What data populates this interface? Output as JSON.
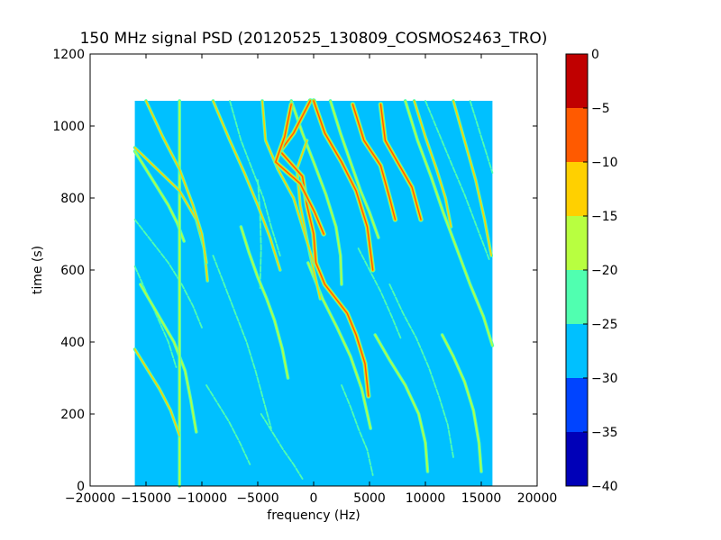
{
  "chart_data": {
    "type": "heatmap",
    "title": "150 MHz signal PSD (20120525_130809_COSMOS2463_TRO)",
    "xlabel": "frequency (Hz)",
    "ylabel": "time (s)",
    "xlim": [
      -20000,
      20000
    ],
    "ylim": [
      0,
      1200
    ],
    "xticks": [
      -20000,
      -15000,
      -10000,
      -5000,
      0,
      5000,
      10000,
      15000,
      20000
    ],
    "xtick_labels": [
      "−20000",
      "−15000",
      "−10000",
      "−5000",
      "0",
      "5000",
      "10000",
      "15000",
      "20000"
    ],
    "yticks": [
      0,
      200,
      400,
      600,
      800,
      1000,
      1200
    ],
    "ytick_labels": [
      "0",
      "200",
      "400",
      "600",
      "800",
      "1000",
      "1200"
    ],
    "data_extent": {
      "x": [
        -16000,
        16000
      ],
      "y": [
        0,
        1070
      ]
    },
    "background_level": -27.5,
    "colorbar": {
      "levels": [
        -40,
        -35,
        -30,
        -25,
        -20,
        -15,
        -10,
        -5,
        0
      ],
      "tick_labels": [
        "−40",
        "−35",
        "−30",
        "−25",
        "−20",
        "−15",
        "−10",
        "−5",
        "0"
      ],
      "colors": [
        "#0000b8",
        "#0044ff",
        "#00c0ff",
        "#50ffb0",
        "#b8ff40",
        "#ffd000",
        "#ff5a00",
        "#c00000"
      ]
    },
    "traces": [
      {
        "level": -7.5,
        "points": [
          [
            -300,
            1070
          ],
          [
            -1800,
            980
          ],
          [
            -3000,
            930
          ],
          [
            -1000,
            860
          ],
          [
            -600,
            780
          ],
          [
            0,
            700
          ],
          [
            200,
            620
          ],
          [
            1000,
            560
          ],
          [
            2000,
            520
          ],
          [
            3000,
            480
          ],
          [
            3800,
            420
          ],
          [
            4600,
            340
          ],
          [
            4900,
            250
          ]
        ]
      },
      {
        "level": -7.5,
        "points": [
          [
            0,
            1070
          ],
          [
            1000,
            980
          ],
          [
            2500,
            900
          ],
          [
            3800,
            820
          ],
          [
            4800,
            720
          ],
          [
            5300,
            600
          ]
        ]
      },
      {
        "level": -7.5,
        "points": [
          [
            3500,
            1060
          ],
          [
            4500,
            960
          ],
          [
            6000,
            890
          ],
          [
            6800,
            800
          ],
          [
            7300,
            740
          ]
        ]
      },
      {
        "level": -7.5,
        "points": [
          [
            6000,
            1060
          ],
          [
            6400,
            960
          ],
          [
            7500,
            900
          ],
          [
            8800,
            830
          ],
          [
            9600,
            740
          ]
        ]
      },
      {
        "level": -7.5,
        "points": [
          [
            -2000,
            1060
          ],
          [
            -2600,
            970
          ],
          [
            -3400,
            900
          ],
          [
            -1200,
            840
          ],
          [
            100,
            760
          ],
          [
            900,
            700
          ]
        ]
      },
      {
        "level": -12.5,
        "points": [
          [
            -600,
            960
          ],
          [
            -1500,
            880
          ],
          [
            -1200,
            780
          ],
          [
            -300,
            640
          ],
          [
            300,
            560
          ],
          [
            600,
            520
          ]
        ]
      },
      {
        "level": -12.5,
        "points": [
          [
            -4600,
            1070
          ],
          [
            -4300,
            960
          ],
          [
            -3200,
            880
          ],
          [
            -1800,
            800
          ],
          [
            -600,
            680
          ],
          [
            0,
            620
          ]
        ]
      },
      {
        "level": -12.5,
        "points": [
          [
            -16000,
            940
          ],
          [
            -14000,
            880
          ],
          [
            -12000,
            820
          ],
          [
            -10500,
            740
          ],
          [
            -9800,
            660
          ],
          [
            -9500,
            570
          ]
        ]
      },
      {
        "level": -12.5,
        "points": [
          [
            -15000,
            1070
          ],
          [
            -13500,
            970
          ],
          [
            -12000,
            880
          ],
          [
            -10800,
            780
          ],
          [
            -10000,
            700
          ],
          [
            -9600,
            620
          ]
        ]
      },
      {
        "level": -12.5,
        "points": [
          [
            -9000,
            1070
          ],
          [
            -7500,
            960
          ],
          [
            -6200,
            870
          ],
          [
            -5000,
            780
          ],
          [
            -3900,
            690
          ],
          [
            -3000,
            600
          ]
        ]
      },
      {
        "level": -12.5,
        "points": [
          [
            -16000,
            380
          ],
          [
            -15000,
            330
          ],
          [
            -13800,
            270
          ],
          [
            -12800,
            210
          ],
          [
            -12000,
            140
          ]
        ]
      },
      {
        "level": -12.5,
        "points": [
          [
            9000,
            1070
          ],
          [
            10000,
            970
          ],
          [
            11000,
            880
          ],
          [
            11800,
            800
          ],
          [
            12300,
            720
          ]
        ]
      },
      {
        "level": -12.5,
        "points": [
          [
            12500,
            1070
          ],
          [
            13500,
            960
          ],
          [
            14500,
            850
          ],
          [
            15300,
            740
          ],
          [
            15900,
            640
          ]
        ]
      },
      {
        "level": -17.5,
        "points": [
          [
            -15500,
            560
          ],
          [
            -14000,
            480
          ],
          [
            -12500,
            400
          ],
          [
            -11500,
            320
          ],
          [
            -11000,
            240
          ],
          [
            -10500,
            150
          ]
        ]
      },
      {
        "level": -17.5,
        "points": [
          [
            -6500,
            720
          ],
          [
            -5800,
            650
          ],
          [
            -5000,
            580
          ],
          [
            -4200,
            520
          ],
          [
            -3500,
            460
          ],
          [
            -2800,
            380
          ],
          [
            -2300,
            300
          ]
        ]
      },
      {
        "level": -17.5,
        "points": [
          [
            1500,
            1070
          ],
          [
            2400,
            980
          ],
          [
            3300,
            900
          ],
          [
            4200,
            820
          ],
          [
            5000,
            760
          ],
          [
            5800,
            690
          ]
        ]
      },
      {
        "level": -17.5,
        "points": [
          [
            8200,
            1070
          ],
          [
            9300,
            960
          ],
          [
            10500,
            860
          ],
          [
            11600,
            760
          ],
          [
            12800,
            660
          ],
          [
            14000,
            560
          ],
          [
            15200,
            470
          ],
          [
            16000,
            390
          ]
        ]
      },
      {
        "level": -17.5,
        "points": [
          [
            5500,
            420
          ],
          [
            6800,
            350
          ],
          [
            8200,
            280
          ],
          [
            9400,
            200
          ],
          [
            10000,
            120
          ],
          [
            10200,
            40
          ]
        ]
      },
      {
        "level": -17.5,
        "points": [
          [
            11500,
            420
          ],
          [
            12500,
            360
          ],
          [
            13500,
            290
          ],
          [
            14300,
            210
          ],
          [
            14800,
            120
          ],
          [
            15000,
            40
          ]
        ]
      },
      {
        "level": -17.5,
        "points": [
          [
            -2000,
            1070
          ],
          [
            -1000,
            980
          ],
          [
            0,
            900
          ],
          [
            1100,
            810
          ],
          [
            2000,
            720
          ],
          [
            2400,
            640
          ],
          [
            2500,
            560
          ]
        ]
      },
      {
        "level": -17.5,
        "points": [
          [
            -500,
            620
          ],
          [
            800,
            520
          ],
          [
            2100,
            440
          ],
          [
            3300,
            360
          ],
          [
            4300,
            270
          ],
          [
            5100,
            160
          ]
        ]
      },
      {
        "level": -17.5,
        "points": [
          [
            -16000,
            930
          ],
          [
            -15000,
            880
          ],
          [
            -14000,
            830
          ],
          [
            -13000,
            780
          ],
          [
            -12200,
            730
          ],
          [
            -11600,
            680
          ]
        ]
      },
      {
        "level": -17.5,
        "points": [
          [
            -12000,
            1070
          ],
          [
            -12000,
            0
          ]
        ]
      },
      {
        "level": -22.5,
        "points": [
          [
            -16000,
            740
          ],
          [
            -14500,
            680
          ],
          [
            -13000,
            620
          ],
          [
            -11800,
            560
          ],
          [
            -10800,
            500
          ],
          [
            -10000,
            440
          ]
        ]
      },
      {
        "level": -22.5,
        "points": [
          [
            -9000,
            640
          ],
          [
            -8000,
            560
          ],
          [
            -7000,
            480
          ],
          [
            -6000,
            400
          ],
          [
            -5200,
            320
          ],
          [
            -4500,
            240
          ],
          [
            -3800,
            160
          ]
        ]
      },
      {
        "level": -22.5,
        "points": [
          [
            -7500,
            1070
          ],
          [
            -6500,
            960
          ],
          [
            -5500,
            880
          ],
          [
            -4500,
            800
          ],
          [
            -3800,
            720
          ],
          [
            -3000,
            640
          ]
        ]
      },
      {
        "level": -22.5,
        "points": [
          [
            -16000,
            610
          ],
          [
            -15000,
            540
          ],
          [
            -14000,
            470
          ],
          [
            -13000,
            400
          ],
          [
            -12300,
            330
          ]
        ]
      },
      {
        "level": -22.5,
        "points": [
          [
            2500,
            280
          ],
          [
            3300,
            220
          ],
          [
            4000,
            160
          ],
          [
            4800,
            100
          ],
          [
            5300,
            30
          ]
        ]
      },
      {
        "level": -22.5,
        "points": [
          [
            6800,
            560
          ],
          [
            8000,
            480
          ],
          [
            9200,
            410
          ],
          [
            10300,
            330
          ],
          [
            11200,
            250
          ],
          [
            12000,
            170
          ],
          [
            12500,
            80
          ]
        ]
      },
      {
        "level": -22.5,
        "points": [
          [
            10000,
            1070
          ],
          [
            11200,
            980
          ],
          [
            12400,
            890
          ],
          [
            13500,
            810
          ],
          [
            14600,
            720
          ],
          [
            15700,
            630
          ]
        ]
      },
      {
        "level": -22.5,
        "points": [
          [
            -4700,
            200
          ],
          [
            -3700,
            150
          ],
          [
            -2700,
            100
          ],
          [
            -1800,
            60
          ],
          [
            -1000,
            20
          ]
        ]
      },
      {
        "level": -22.5,
        "points": [
          [
            14000,
            1070
          ],
          [
            14800,
            990
          ],
          [
            15500,
            920
          ],
          [
            16000,
            870
          ]
        ]
      },
      {
        "level": -22.5,
        "points": [
          [
            -5000,
            850
          ],
          [
            -4800,
            760
          ],
          [
            -4700,
            660
          ],
          [
            -4800,
            550
          ]
        ]
      },
      {
        "level": -22.5,
        "points": [
          [
            -9600,
            280
          ],
          [
            -8600,
            230
          ],
          [
            -7600,
            180
          ],
          [
            -6600,
            120
          ],
          [
            -5700,
            60
          ]
        ]
      },
      {
        "level": -22.5,
        "points": [
          [
            4000,
            660
          ],
          [
            5000,
            600
          ],
          [
            6000,
            540
          ],
          [
            7000,
            470
          ],
          [
            7800,
            410
          ]
        ]
      }
    ]
  }
}
